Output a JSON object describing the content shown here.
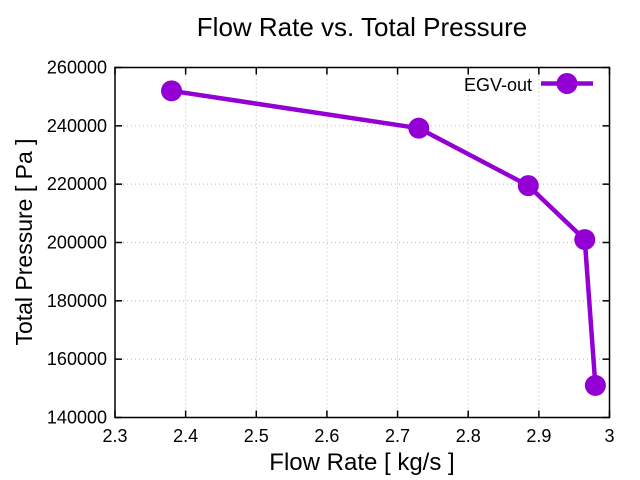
{
  "chart_data": {
    "type": "line",
    "title": "Flow Rate vs. Total Pressure",
    "xlabel": "Flow Rate [ kg/s ]",
    "ylabel": "Total Pressure [ Pa ]",
    "xlim": [
      2.3,
      3.0
    ],
    "ylim": [
      140000,
      260000
    ],
    "x_ticks": [
      2.3,
      2.4,
      2.5,
      2.6,
      2.7,
      2.8,
      2.9,
      3.0
    ],
    "x_tick_labels": [
      "2.3",
      "2.4",
      "2.5",
      "2.6",
      "2.7",
      "2.8",
      "2.9",
      "3"
    ],
    "y_ticks": [
      140000,
      160000,
      180000,
      200000,
      220000,
      240000,
      260000
    ],
    "y_tick_labels": [
      "140000",
      "160000",
      "180000",
      "200000",
      "220000",
      "240000",
      "260000"
    ],
    "grid": true,
    "grid_style": "dotted",
    "legend_position": "top-right-inside",
    "series": [
      {
        "name": "EGV-out",
        "color": "#9400D3",
        "marker": "circle",
        "x": [
          2.38,
          2.73,
          2.885,
          2.965,
          2.98
        ],
        "y": [
          252000,
          239200,
          219500,
          201000,
          151000
        ]
      }
    ]
  },
  "colors": {
    "line": "#9400D3",
    "grid": "#b8b8b8",
    "axis": "#000000",
    "text": "#000000",
    "background": "#ffffff"
  }
}
